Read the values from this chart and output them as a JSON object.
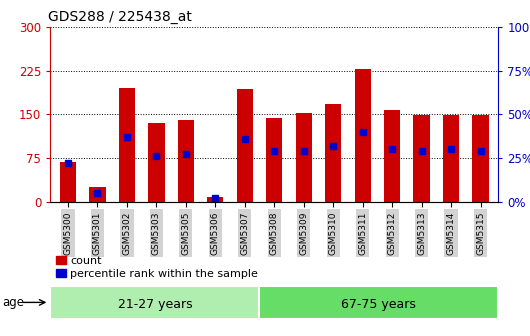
{
  "title": "GDS288 / 225438_at",
  "samples": [
    "GSM5300",
    "GSM5301",
    "GSM5302",
    "GSM5303",
    "GSM5305",
    "GSM5306",
    "GSM5307",
    "GSM5308",
    "GSM5309",
    "GSM5310",
    "GSM5311",
    "GSM5312",
    "GSM5313",
    "GSM5314",
    "GSM5315"
  ],
  "counts": [
    68,
    25,
    195,
    135,
    140,
    8,
    193,
    143,
    152,
    168,
    228,
    157,
    148,
    148,
    148
  ],
  "percentiles_pct": [
    22,
    5,
    37,
    26,
    27,
    2,
    36,
    29,
    29,
    32,
    40,
    30,
    29,
    30,
    29
  ],
  "groups": [
    {
      "label": "21-27 years",
      "start": 0,
      "end": 7,
      "color": "#90ee90"
    },
    {
      "label": "67-75 years",
      "start": 7,
      "end": 15,
      "color": "#3cb371"
    }
  ],
  "bar_color_red": "#cc0000",
  "bar_color_blue": "#0000cc",
  "ylim_left": [
    0,
    300
  ],
  "ylim_right": [
    0,
    100
  ],
  "yticks_left": [
    0,
    75,
    150,
    225,
    300
  ],
  "yticks_right": [
    0,
    25,
    50,
    75,
    100
  ],
  "ylabel_left_color": "#cc0000",
  "ylabel_right_color": "#0000cc",
  "grid_color": "#000000",
  "legend_items": [
    "count",
    "percentile rank within the sample"
  ],
  "age_label": "age",
  "bar_width": 0.55,
  "tick_bg_color": "#d3d3d3",
  "group1_color": "#b0eeb0",
  "group2_color": "#66dd66"
}
